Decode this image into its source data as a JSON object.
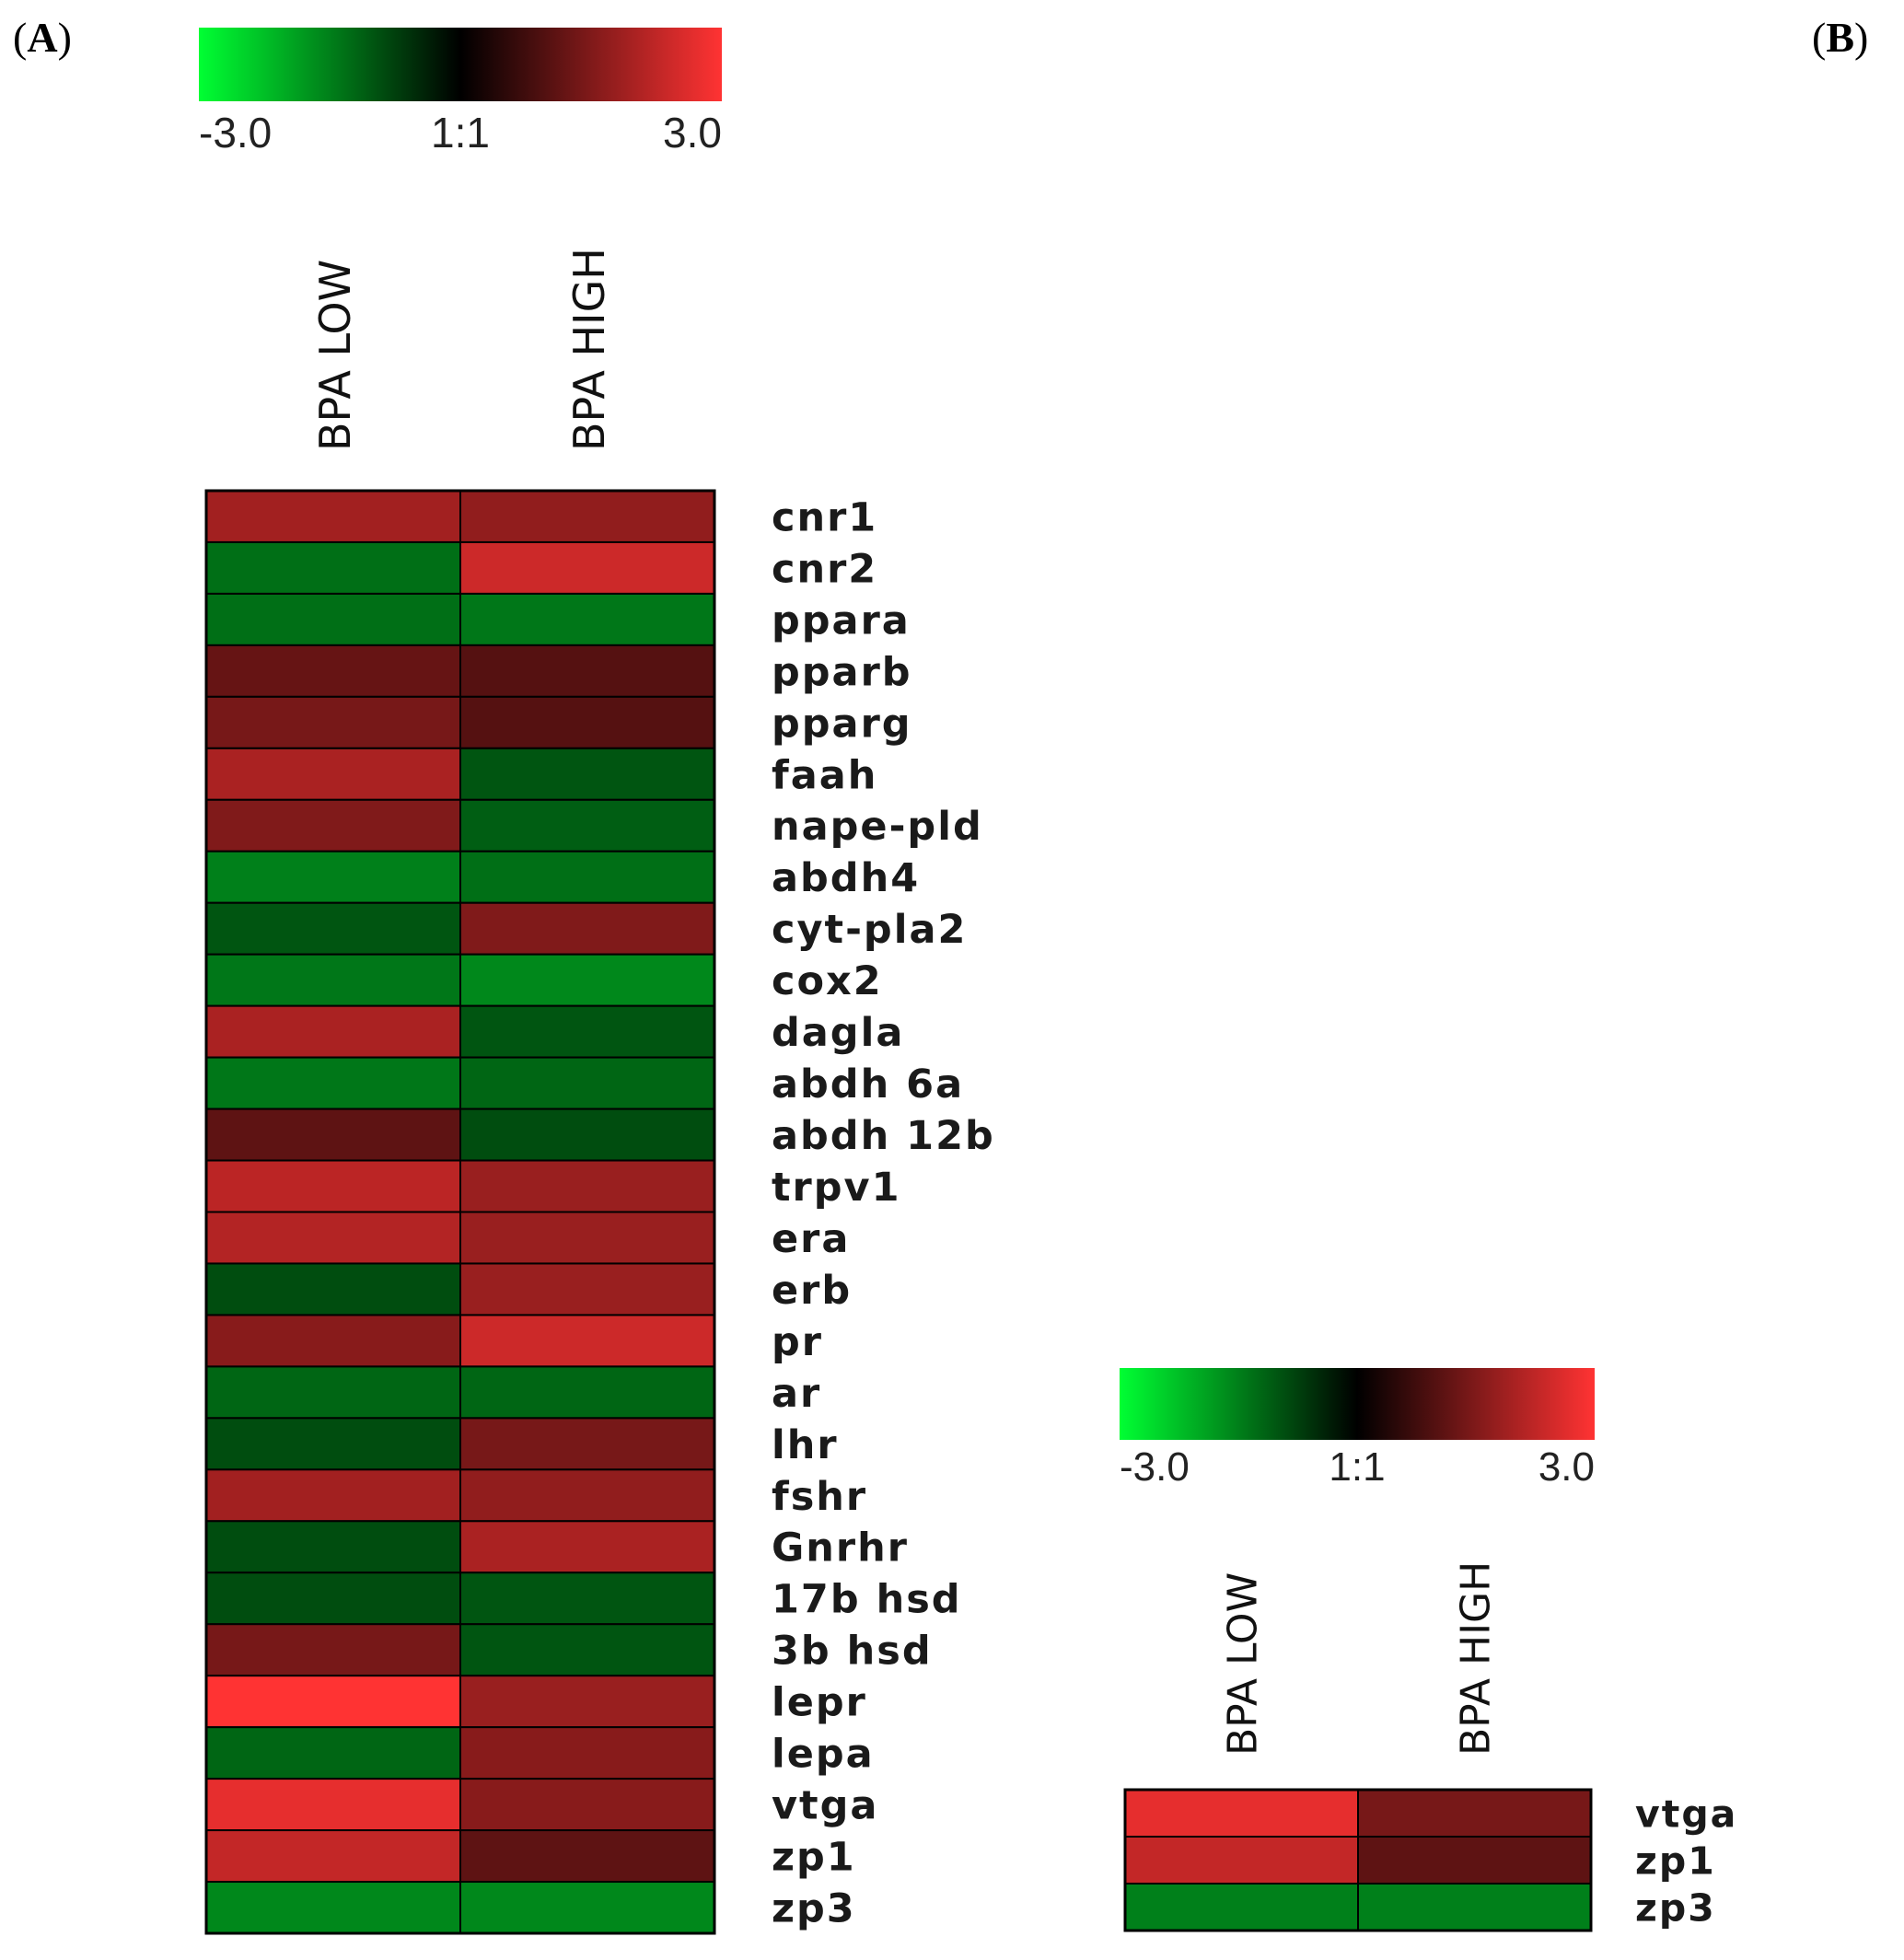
{
  "panels": {
    "a_label": "A",
    "b_label": "B"
  },
  "color_scale": {
    "min_label": "-3.0",
    "mid_label": "1:1",
    "max_label": "3.0",
    "min": -3.0,
    "max": 3.0,
    "low_color": "#00ff33",
    "mid_color": "#000000",
    "high_color": "#ff3333"
  },
  "chart_data": [
    {
      "type": "heatmap",
      "panel": "A",
      "columns": [
        "BPA LOW",
        "BPA HIGH"
      ],
      "rows": [
        "cnr1",
        "cnr2",
        "ppara",
        "pparb",
        "pparg",
        "faah",
        "nape-pld",
        "abdh4",
        "cyt-pla2",
        "cox2",
        "dagla",
        "abdh 6a",
        "abdh 12b",
        "trpv1",
        "era",
        "erb",
        "pr",
        "ar",
        "lhr",
        "fshr",
        "Gnrhr",
        "17b hsd",
        "3b hsd",
        "lepr",
        "lepa",
        "vtga",
        "zp1",
        "zp3"
      ],
      "values": [
        [
          1.9,
          1.7
        ],
        [
          -1.3,
          2.4
        ],
        [
          -1.3,
          -1.4
        ],
        [
          1.2,
          1.0
        ],
        [
          1.4,
          1.0
        ],
        [
          2.0,
          -1.0
        ],
        [
          1.5,
          -1.1
        ],
        [
          -1.5,
          -1.3
        ],
        [
          -1.0,
          1.5
        ],
        [
          -1.4,
          -1.6
        ],
        [
          2.0,
          -1.0
        ],
        [
          -1.4,
          -1.2
        ],
        [
          1.1,
          -0.9
        ],
        [
          2.2,
          1.8
        ],
        [
          2.1,
          1.8
        ],
        [
          -0.9,
          1.8
        ],
        [
          1.6,
          2.4
        ],
        [
          -1.2,
          -1.2
        ],
        [
          -0.9,
          1.4
        ],
        [
          1.9,
          1.7
        ],
        [
          -0.9,
          2.0
        ],
        [
          -0.9,
          -1.0
        ],
        [
          1.4,
          -1.0
        ],
        [
          3.0,
          1.8
        ],
        [
          -1.2,
          1.6
        ],
        [
          2.7,
          1.6
        ],
        [
          2.3,
          1.1
        ],
        [
          -1.6,
          -1.6
        ]
      ]
    },
    {
      "type": "heatmap",
      "panel": "B",
      "columns": [
        "BPA LOW",
        "BPA HIGH"
      ],
      "rows": [
        "vtga",
        "zp1",
        "zp3"
      ],
      "values": [
        [
          2.7,
          1.4
        ],
        [
          2.3,
          1.1
        ],
        [
          -1.5,
          -1.5
        ]
      ]
    }
  ]
}
